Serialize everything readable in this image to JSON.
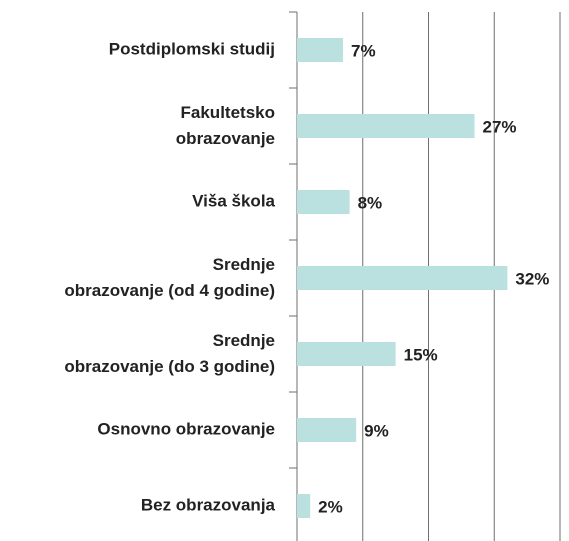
{
  "chart_data": {
    "type": "bar",
    "orientation": "horizontal",
    "categories": [
      "Postdiplomski studij",
      "Fakultetsko obrazovanje",
      "Viša škola",
      "Srednje obrazovanje (od 4 godine)",
      "Srednje obrazovanje (do 3 godine)",
      "Osnovno obrazovanje",
      "Bez obrazovanja"
    ],
    "values": [
      7,
      27,
      8,
      32,
      15,
      9,
      2
    ],
    "value_labels": [
      "7%",
      "27%",
      "8%",
      "32%",
      "15%",
      "9%",
      "2%"
    ],
    "color": "#bae0df",
    "xlim": [
      0,
      40
    ],
    "xticks": [
      0,
      10,
      20,
      30,
      40
    ],
    "grid": true
  }
}
